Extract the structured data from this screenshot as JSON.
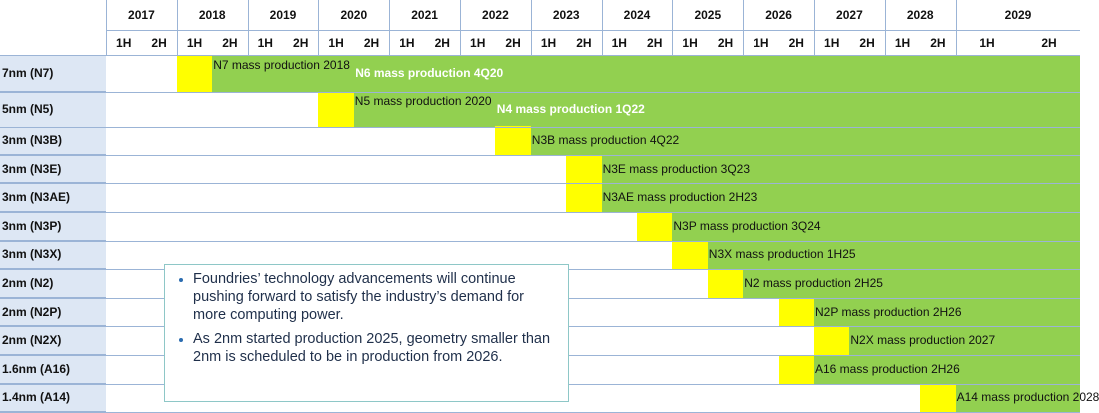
{
  "chart_data": {
    "type": "table",
    "title": "",
    "years": [
      "2017",
      "2018",
      "2019",
      "2020",
      "2021",
      "2022",
      "2023",
      "2024",
      "2025",
      "2026",
      "2027",
      "2028",
      "2029"
    ],
    "halves": [
      "1H",
      "2H"
    ],
    "rows": [
      {
        "name": "7nm (N7)",
        "start": "2018 1H",
        "production_label": "N7 mass production 2018",
        "followon_label": "N6 mass production 4Q20"
      },
      {
        "name": "5nm (N5)",
        "start": "2020 1H",
        "production_label": "N5 mass production 2020",
        "followon_label": "N4 mass production 1Q22"
      },
      {
        "name": "3nm (N3B)",
        "start": "2022 2H",
        "production_label": "N3B mass production 4Q22"
      },
      {
        "name": "3nm (N3E)",
        "start": "2023 2H",
        "production_label": "N3E mass production 3Q23"
      },
      {
        "name": "3nm (N3AE)",
        "start": "2023 2H",
        "production_label": "N3AE mass production 2H23"
      },
      {
        "name": "3nm (N3P)",
        "start": "2024 2H",
        "production_label": "N3P mass production 3Q24"
      },
      {
        "name": "3nm (N3X)",
        "start": "2025 1H",
        "production_label": "N3X mass production 1H25"
      },
      {
        "name": "2nm (N2)",
        "start": "2025 2H",
        "production_label": "N2 mass production 2H25"
      },
      {
        "name": "2nm (N2P)",
        "start": "2026 2H",
        "production_label": "N2P mass production 2H26"
      },
      {
        "name": "2nm (N2X)",
        "start": "2027 1H",
        "production_label": "N2X mass production 2027"
      },
      {
        "name": "1.6nm (A16)",
        "start": "2026 2H",
        "production_label": "A16 mass production 2H26"
      },
      {
        "name": "1.4nm (A14)",
        "start": "2028 2H",
        "production_label": "A14 mass production 2028"
      }
    ],
    "colors": {
      "available": "#92d050",
      "production_start": "#ffff00",
      "row_label_bg": "#dde7f4"
    }
  },
  "note": {
    "bullets": [
      "Foundries’ technology advancements will continue pushing forward to satisfy the industry’s demand for more computing power.",
      "As 2nm started production 2025, geometry smaller than 2nm is scheduled to be in production from 2026."
    ]
  }
}
